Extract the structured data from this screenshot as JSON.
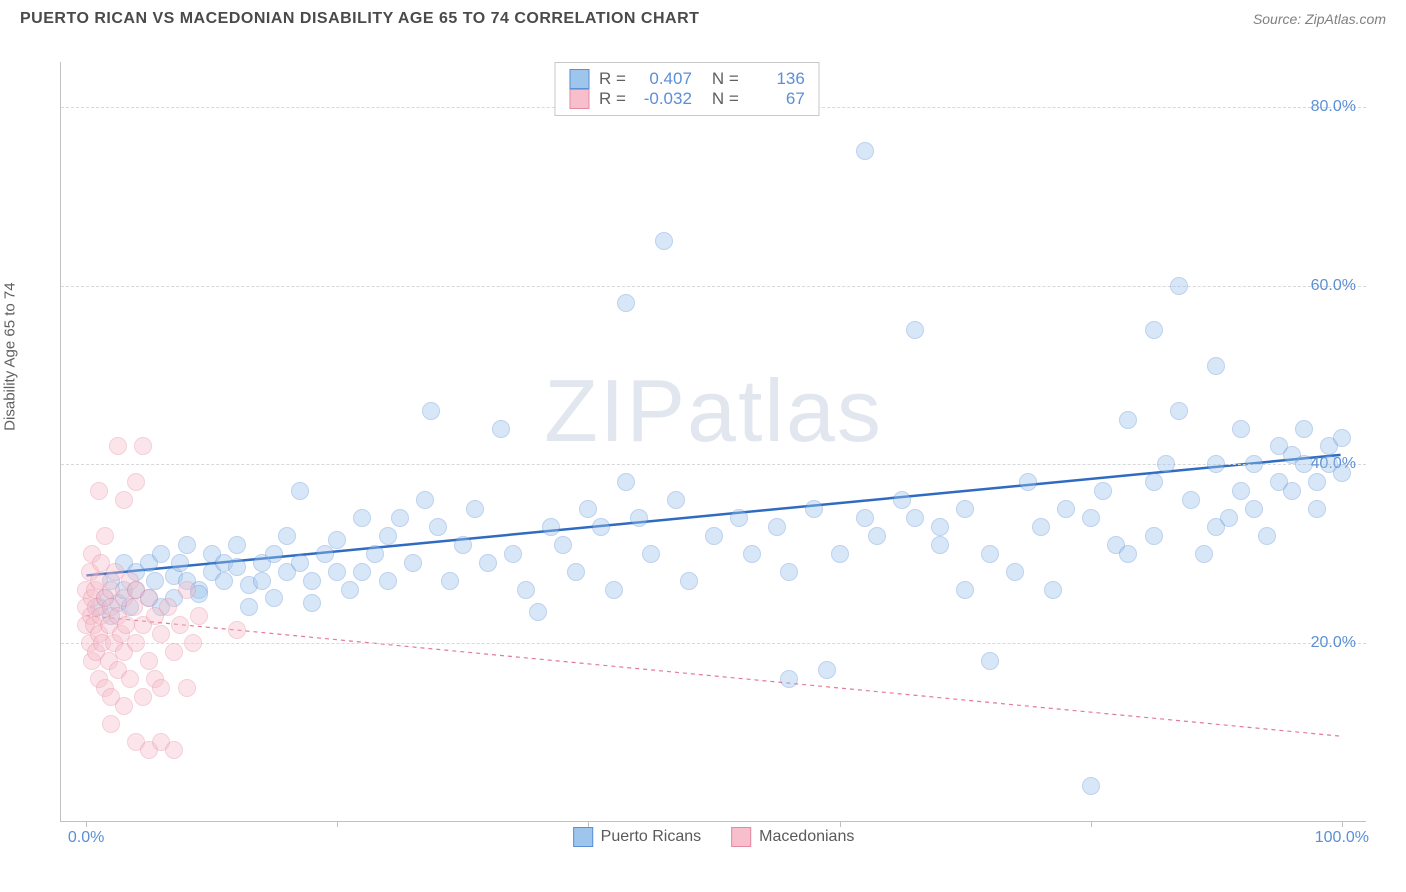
{
  "title": "PUERTO RICAN VS MACEDONIAN DISABILITY AGE 65 TO 74 CORRELATION CHART",
  "source_label": "Source: ZipAtlas.com",
  "watermark": "ZIPatlas",
  "y_axis_title": "Disability Age 65 to 74",
  "chart": {
    "type": "scatter",
    "background_color": "#ffffff",
    "grid_color": "#d8d8d8",
    "axis_color": "#c0c0c0",
    "x_range": [
      -2,
      102
    ],
    "y_range": [
      0,
      85
    ],
    "x_ticks": [
      0,
      20,
      40,
      60,
      80,
      100
    ],
    "x_tick_labels": {
      "0": "0.0%",
      "100": "100.0%"
    },
    "y_ticks": [
      20,
      40,
      60,
      80
    ],
    "y_tick_labels": {
      "20": "20.0%",
      "40": "40.0%",
      "60": "60.0%",
      "80": "80.0%"
    },
    "marker_radius": 9,
    "marker_opacity": 0.4,
    "series": [
      {
        "name": "Puerto Ricans",
        "fill_color": "#9ec5ec",
        "stroke_color": "#5b8fd6",
        "line_color": "#2f6bc0",
        "line_width": 2.5,
        "line_dash": "none",
        "R": "0.407",
        "N": "136",
        "trend": {
          "x1": 0,
          "y1": 27.5,
          "x2": 100,
          "y2": 41.0
        },
        "points": [
          [
            1,
            24
          ],
          [
            1.5,
            25
          ],
          [
            2,
            27
          ],
          [
            2,
            23
          ],
          [
            2.5,
            24.5
          ],
          [
            3,
            26
          ],
          [
            3,
            29
          ],
          [
            3.5,
            24
          ],
          [
            4,
            26
          ],
          [
            4,
            28
          ],
          [
            5,
            25
          ],
          [
            5,
            29
          ],
          [
            5.5,
            27
          ],
          [
            6,
            24
          ],
          [
            6,
            30
          ],
          [
            7,
            27.5
          ],
          [
            7,
            25
          ],
          [
            7.5,
            29
          ],
          [
            8,
            27
          ],
          [
            8,
            31
          ],
          [
            9,
            26
          ],
          [
            9,
            25.5
          ],
          [
            10,
            28
          ],
          [
            10,
            30
          ],
          [
            11,
            27
          ],
          [
            11,
            29
          ],
          [
            12,
            28.5
          ],
          [
            12,
            31
          ],
          [
            13,
            24
          ],
          [
            13,
            26.5
          ],
          [
            14,
            29
          ],
          [
            14,
            27
          ],
          [
            15,
            30
          ],
          [
            15,
            25
          ],
          [
            16,
            28
          ],
          [
            16,
            32
          ],
          [
            17,
            29
          ],
          [
            17,
            37
          ],
          [
            18,
            27
          ],
          [
            18,
            24.5
          ],
          [
            19,
            30
          ],
          [
            20,
            31.5
          ],
          [
            20,
            28
          ],
          [
            21,
            26
          ],
          [
            22,
            34
          ],
          [
            22,
            28
          ],
          [
            23,
            30
          ],
          [
            24,
            27
          ],
          [
            24,
            32
          ],
          [
            25,
            34
          ],
          [
            26,
            29
          ],
          [
            27,
            36
          ],
          [
            27.5,
            46
          ],
          [
            28,
            33
          ],
          [
            29,
            27
          ],
          [
            30,
            31
          ],
          [
            31,
            35
          ],
          [
            32,
            29
          ],
          [
            33,
            44
          ],
          [
            34,
            30
          ],
          [
            35,
            26
          ],
          [
            36,
            23.5
          ],
          [
            37,
            33
          ],
          [
            38,
            31
          ],
          [
            39,
            28
          ],
          [
            40,
            35
          ],
          [
            41,
            33
          ],
          [
            42,
            26
          ],
          [
            43,
            58
          ],
          [
            43,
            38
          ],
          [
            44,
            34
          ],
          [
            45,
            30
          ],
          [
            46,
            65
          ],
          [
            47,
            36
          ],
          [
            48,
            27
          ],
          [
            50,
            32
          ],
          [
            52,
            34
          ],
          [
            53,
            30
          ],
          [
            55,
            33
          ],
          [
            56,
            16
          ],
          [
            56,
            28
          ],
          [
            58,
            35
          ],
          [
            59,
            17
          ],
          [
            60,
            30
          ],
          [
            62,
            34
          ],
          [
            62,
            75
          ],
          [
            63,
            32
          ],
          [
            65,
            36
          ],
          [
            66,
            34
          ],
          [
            66,
            55
          ],
          [
            68,
            33
          ],
          [
            68,
            31
          ],
          [
            70,
            35
          ],
          [
            70,
            26
          ],
          [
            72,
            18
          ],
          [
            72,
            30
          ],
          [
            74,
            28
          ],
          [
            75,
            38
          ],
          [
            76,
            33
          ],
          [
            77,
            26
          ],
          [
            78,
            35
          ],
          [
            80,
            34
          ],
          [
            80,
            4
          ],
          [
            81,
            37
          ],
          [
            82,
            31
          ],
          [
            83,
            45
          ],
          [
            83,
            30
          ],
          [
            85,
            32
          ],
          [
            85,
            38
          ],
          [
            85,
            55
          ],
          [
            86,
            40
          ],
          [
            87,
            46
          ],
          [
            87,
            60
          ],
          [
            88,
            36
          ],
          [
            89,
            30
          ],
          [
            90,
            40
          ],
          [
            90,
            33
          ],
          [
            90,
            51
          ],
          [
            91,
            34
          ],
          [
            92,
            37
          ],
          [
            92,
            44
          ],
          [
            93,
            40
          ],
          [
            93,
            35
          ],
          [
            94,
            32
          ],
          [
            95,
            38
          ],
          [
            95,
            42
          ],
          [
            96,
            41
          ],
          [
            96,
            37
          ],
          [
            97,
            40
          ],
          [
            97,
            44
          ],
          [
            98,
            38
          ],
          [
            98,
            35
          ],
          [
            99,
            42
          ],
          [
            99,
            40
          ],
          [
            100,
            39
          ],
          [
            100,
            43
          ]
        ]
      },
      {
        "name": "Macedonians",
        "fill_color": "#f6bfcb",
        "stroke_color": "#e68aa2",
        "line_color": "#e47a94",
        "line_width": 1.2,
        "line_dash": "4,4",
        "R": "-0.032",
        "N": "67",
        "trend": {
          "x1": 0,
          "y1": 23.0,
          "x2": 100,
          "y2": 9.5
        },
        "points": [
          [
            0,
            22
          ],
          [
            0,
            24
          ],
          [
            0,
            26
          ],
          [
            0.3,
            20
          ],
          [
            0.3,
            28
          ],
          [
            0.4,
            23
          ],
          [
            0.5,
            18
          ],
          [
            0.5,
            25
          ],
          [
            0.5,
            30
          ],
          [
            0.6,
            22
          ],
          [
            0.7,
            26
          ],
          [
            0.8,
            19
          ],
          [
            0.8,
            24
          ],
          [
            1,
            21
          ],
          [
            1,
            27
          ],
          [
            1,
            16
          ],
          [
            1,
            37
          ],
          [
            1.2,
            23
          ],
          [
            1.2,
            29
          ],
          [
            1.3,
            20
          ],
          [
            1.5,
            25
          ],
          [
            1.5,
            15
          ],
          [
            1.5,
            32
          ],
          [
            1.8,
            22
          ],
          [
            1.8,
            18
          ],
          [
            2,
            24
          ],
          [
            2,
            26
          ],
          [
            2,
            14
          ],
          [
            2,
            11
          ],
          [
            2.2,
            20
          ],
          [
            2.3,
            28
          ],
          [
            2.5,
            23
          ],
          [
            2.5,
            17
          ],
          [
            2.5,
            42
          ],
          [
            2.8,
            21
          ],
          [
            3,
            25
          ],
          [
            3,
            19
          ],
          [
            3,
            13
          ],
          [
            3,
            36
          ],
          [
            3.2,
            22
          ],
          [
            3.5,
            27
          ],
          [
            3.5,
            16
          ],
          [
            3.8,
            24
          ],
          [
            4,
            20
          ],
          [
            4,
            26
          ],
          [
            4,
            38
          ],
          [
            4,
            9
          ],
          [
            4.5,
            22
          ],
          [
            4.5,
            42
          ],
          [
            4.5,
            14
          ],
          [
            5,
            25
          ],
          [
            5,
            18
          ],
          [
            5,
            8
          ],
          [
            5.5,
            23
          ],
          [
            5.5,
            16
          ],
          [
            6,
            21
          ],
          [
            6,
            15
          ],
          [
            6,
            9
          ],
          [
            6.5,
            24
          ],
          [
            7,
            19
          ],
          [
            7,
            8
          ],
          [
            7.5,
            22
          ],
          [
            8,
            15
          ],
          [
            8,
            26
          ],
          [
            8.5,
            20
          ],
          [
            9,
            23
          ],
          [
            12,
            21.5
          ]
        ]
      }
    ],
    "stats_legend_labels": {
      "R": "R =",
      "N": "N ="
    },
    "bottom_legend": [
      "Puerto Ricans",
      "Macedonians"
    ]
  }
}
